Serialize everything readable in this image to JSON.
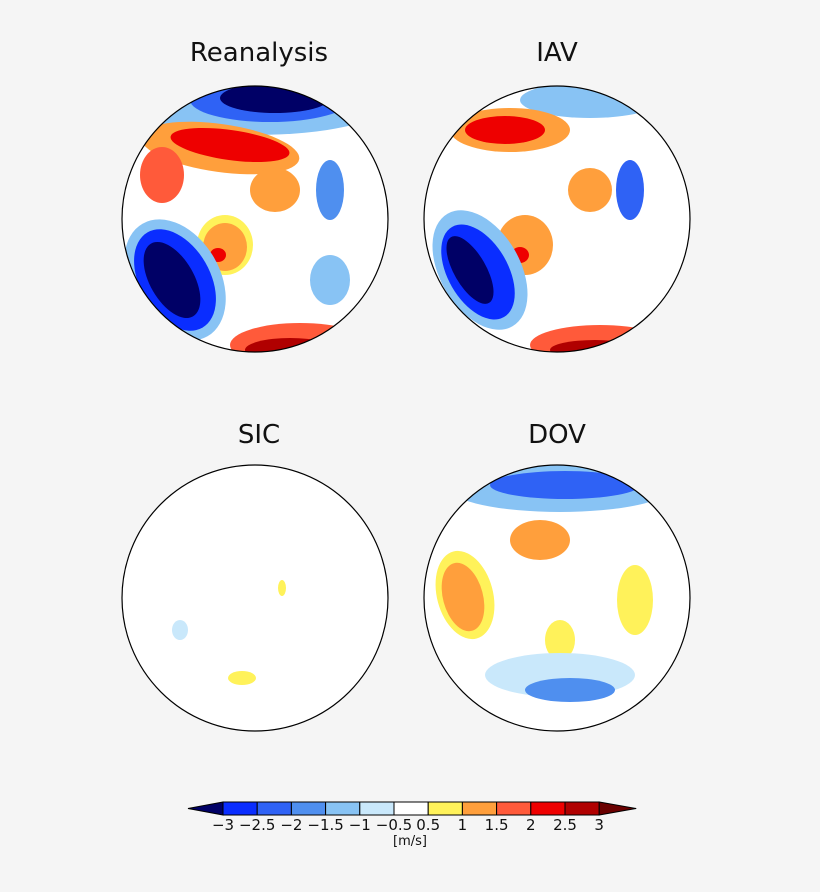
{
  "panels": [
    {
      "title": "Reanalysis"
    },
    {
      "title": "IAV"
    },
    {
      "title": "SIC"
    },
    {
      "title": "DOV"
    }
  ],
  "colorbar": {
    "unit": "[m/s]",
    "tick_labels": [
      "−3",
      "−2.5",
      "−2",
      "−1.5",
      "−1",
      "−0.5",
      "0.5",
      "1",
      "1.5",
      "2",
      "2.5",
      "3"
    ],
    "colors": [
      "#000066",
      "#0a2dff",
      "#2f62f5",
      "#4f8fef",
      "#88c3f4",
      "#c9e8fb",
      "#ffffff",
      "#fff25a",
      "#ff9f3c",
      "#ff5a3a",
      "#ee0000",
      "#b00000",
      "#6a0000"
    ]
  }
}
